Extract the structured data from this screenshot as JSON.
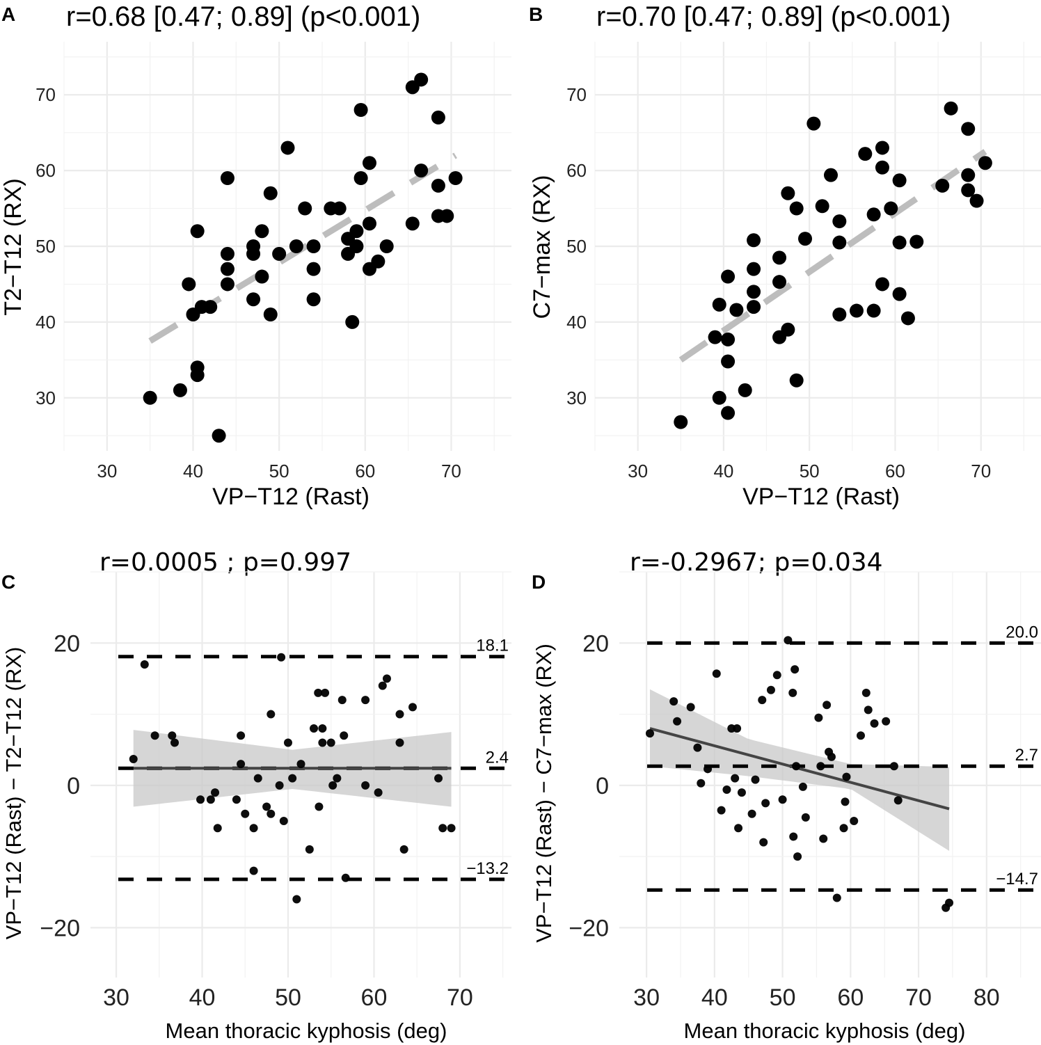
{
  "figure": {
    "panels": [
      "A",
      "B",
      "C",
      "D"
    ]
  },
  "chart_data": [
    {
      "panel": "A",
      "type": "scatter",
      "title": "r=0.68 [0.47; 0.89] (p<0.001)",
      "xlabel": "VP−T12 (Rast)",
      "ylabel": "T2−T12 (RX)",
      "xlim": [
        25,
        77
      ],
      "ylim": [
        23,
        77
      ],
      "xticks": [
        30,
        40,
        50,
        60,
        70
      ],
      "yticks": [
        30,
        40,
        50,
        60,
        70
      ],
      "grid": true,
      "fit_line": {
        "style": "dashed",
        "color": "#bdbdbd",
        "x": [
          35,
          70.5
        ],
        "y": [
          37.5,
          62
        ]
      },
      "points": [
        [
          35,
          30
        ],
        [
          38.5,
          31
        ],
        [
          40.5,
          34
        ],
        [
          40.5,
          33
        ],
        [
          43,
          25
        ],
        [
          39.5,
          45
        ],
        [
          40,
          41
        ],
        [
          41,
          42
        ],
        [
          40.5,
          52
        ],
        [
          42,
          42
        ],
        [
          44,
          59
        ],
        [
          44,
          49
        ],
        [
          44,
          47
        ],
        [
          44,
          45
        ],
        [
          47,
          50
        ],
        [
          47,
          49
        ],
        [
          47,
          43
        ],
        [
          48,
          52
        ],
        [
          48,
          46
        ],
        [
          49,
          57
        ],
        [
          49,
          41
        ],
        [
          50,
          49
        ],
        [
          51,
          63
        ],
        [
          52,
          50
        ],
        [
          53,
          55
        ],
        [
          54,
          50
        ],
        [
          54,
          47
        ],
        [
          54,
          43
        ],
        [
          56,
          55
        ],
        [
          57,
          55
        ],
        [
          58,
          51
        ],
        [
          58,
          49
        ],
        [
          59,
          52
        ],
        [
          59,
          50
        ],
        [
          58.5,
          40
        ],
        [
          59.5,
          68
        ],
        [
          59.5,
          59
        ],
        [
          60.5,
          61
        ],
        [
          60.5,
          53
        ],
        [
          60.5,
          47
        ],
        [
          61.5,
          48
        ],
        [
          62.5,
          50
        ],
        [
          65.5,
          71
        ],
        [
          66.5,
          72
        ],
        [
          65.5,
          53
        ],
        [
          66.5,
          60
        ],
        [
          68.5,
          67
        ],
        [
          68.5,
          58
        ],
        [
          68.5,
          54
        ],
        [
          69.5,
          54
        ],
        [
          70.5,
          59
        ]
      ]
    },
    {
      "panel": "B",
      "type": "scatter",
      "title": "r=0.70 [0.47; 0.89] (p<0.001)",
      "xlabel": "VP−T12 (Rast)",
      "ylabel": "C7−max (RX)",
      "xlim": [
        25,
        77
      ],
      "ylim": [
        23,
        77
      ],
      "xticks": [
        30,
        40,
        50,
        60,
        70
      ],
      "yticks": [
        30,
        40,
        50,
        60,
        70
      ],
      "grid": true,
      "fit_line": {
        "style": "dashed",
        "color": "#bdbdbd",
        "x": [
          35,
          70.5
        ],
        "y": [
          35,
          62.5
        ]
      },
      "points": [
        [
          35,
          26.8
        ],
        [
          39.5,
          30
        ],
        [
          40.5,
          28
        ],
        [
          42.5,
          31
        ],
        [
          40.5,
          34.8
        ],
        [
          39,
          38
        ],
        [
          40.5,
          37.7
        ],
        [
          39.5,
          42.3
        ],
        [
          41.5,
          41.6
        ],
        [
          40.5,
          46
        ],
        [
          43.5,
          42
        ],
        [
          43.5,
          44
        ],
        [
          43.5,
          47
        ],
        [
          43.5,
          50.8
        ],
        [
          46.5,
          48.5
        ],
        [
          46.5,
          45.3
        ],
        [
          46.5,
          38
        ],
        [
          47.5,
          39
        ],
        [
          47.5,
          57
        ],
        [
          48.5,
          55
        ],
        [
          48.5,
          32.3
        ],
        [
          49.5,
          51
        ],
        [
          50.5,
          66.2
        ],
        [
          51.5,
          55.3
        ],
        [
          52.5,
          59.4
        ],
        [
          53.5,
          53.3
        ],
        [
          53.5,
          50.5
        ],
        [
          53.5,
          41
        ],
        [
          55.5,
          41.5
        ],
        [
          56.5,
          62.2
        ],
        [
          57.5,
          41.5
        ],
        [
          57.5,
          54.2
        ],
        [
          58.5,
          63
        ],
        [
          58.5,
          60.4
        ],
        [
          58.5,
          45
        ],
        [
          59.5,
          55
        ],
        [
          60.5,
          58.7
        ],
        [
          60.5,
          50.5
        ],
        [
          60.5,
          43.7
        ],
        [
          61.5,
          40.5
        ],
        [
          62.5,
          50.6
        ],
        [
          65.5,
          58
        ],
        [
          66.5,
          68.2
        ],
        [
          68.5,
          65.5
        ],
        [
          68.5,
          59.4
        ],
        [
          68.5,
          57.4
        ],
        [
          69.5,
          56
        ],
        [
          70.5,
          61
        ]
      ]
    },
    {
      "panel": "C",
      "type": "scatter",
      "title": "r=0.0005 ; p=0.997",
      "xlabel": "Mean thoracic kyphosis (deg)",
      "ylabel": "VP−T12 (Rast) − T2−T12 (RX)",
      "xlim": [
        27,
        76
      ],
      "ylim": [
        -27,
        30
      ],
      "xticks": [
        30,
        40,
        50,
        60,
        70
      ],
      "yticks": [
        -20,
        0,
        20
      ],
      "grid": true,
      "reference_lines": [
        {
          "value": 18.1,
          "label": "18.1"
        },
        {
          "value": 2.4,
          "label": "2.4"
        },
        {
          "value": -13.2,
          "label": "−13.2"
        }
      ],
      "fit_line": {
        "x": [
          32,
          69
        ],
        "y": [
          2.4,
          2.4
        ],
        "ci_lower": [
          -3,
          -0.5,
          -3
        ],
        "ci_upper": [
          7.8,
          5,
          7.5
        ],
        "ci_x": [
          32,
          50.5,
          69
        ]
      },
      "points": [
        [
          32,
          3.7
        ],
        [
          33.3,
          17
        ],
        [
          34.5,
          7
        ],
        [
          36.5,
          7
        ],
        [
          36.8,
          6
        ],
        [
          39.8,
          -2
        ],
        [
          41,
          -2
        ],
        [
          41.5,
          -1
        ],
        [
          41.8,
          -6
        ],
        [
          44,
          -2
        ],
        [
          44.5,
          7
        ],
        [
          44.5,
          3
        ],
        [
          45,
          -4
        ],
        [
          46,
          -6
        ],
        [
          46,
          -12
        ],
        [
          46.5,
          1
        ],
        [
          47.5,
          -3
        ],
        [
          48,
          10
        ],
        [
          48,
          -4
        ],
        [
          49.5,
          -5
        ],
        [
          49,
          0
        ],
        [
          49.2,
          18
        ],
        [
          50,
          6
        ],
        [
          50.5,
          1
        ],
        [
          51,
          -16
        ],
        [
          51.5,
          3
        ],
        [
          52.5,
          -9
        ],
        [
          53,
          8
        ],
        [
          53.5,
          13
        ],
        [
          53.6,
          -3
        ],
        [
          54,
          8
        ],
        [
          54,
          6
        ],
        [
          54.3,
          13
        ],
        [
          55,
          6
        ],
        [
          55.2,
          0
        ],
        [
          55.7,
          1
        ],
        [
          56.3,
          12
        ],
        [
          56.5,
          7
        ],
        [
          56.7,
          -13
        ],
        [
          59,
          12
        ],
        [
          59,
          0
        ],
        [
          60.5,
          -1
        ],
        [
          61,
          14
        ],
        [
          61.5,
          15
        ],
        [
          63,
          10
        ],
        [
          63,
          6
        ],
        [
          63.5,
          -9
        ],
        [
          64.5,
          11
        ],
        [
          67.5,
          1
        ],
        [
          68,
          -6
        ],
        [
          69,
          -6
        ]
      ]
    },
    {
      "panel": "D",
      "type": "scatter",
      "title": "r=-0.2967; p=0.034",
      "xlabel": "Mean thoracic kyphosis (deg)",
      "ylabel": "VP−T12 (Rast) − C7−max (RX)",
      "xlim": [
        26,
        88
      ],
      "ylim": [
        -27,
        30
      ],
      "xticks": [
        30,
        40,
        50,
        60,
        70,
        80
      ],
      "yticks": [
        -20,
        0,
        20
      ],
      "grid": true,
      "reference_lines": [
        {
          "value": 20.0,
          "label": "20.0"
        },
        {
          "value": 2.7,
          "label": "2.7"
        },
        {
          "value": -14.7,
          "label": "−14.7"
        }
      ],
      "fit_line": {
        "x": [
          30.5,
          74.5
        ],
        "y": [
          8,
          -3.3
        ],
        "ci_lower": [
          2.7,
          1.3,
          -0.5,
          -9.2
        ],
        "ci_upper": [
          13.5,
          6.5,
          3,
          2.6
        ],
        "ci_x": [
          30.5,
          45,
          60,
          74.5
        ]
      },
      "points": [
        [
          30.5,
          7.3
        ],
        [
          34,
          11.8
        ],
        [
          34.5,
          9
        ],
        [
          36.5,
          11
        ],
        [
          37.5,
          5.3
        ],
        [
          38,
          0.3
        ],
        [
          39,
          2.3
        ],
        [
          40.3,
          15.7
        ],
        [
          41,
          -3.5
        ],
        [
          41.8,
          -0.6
        ],
        [
          42.5,
          8
        ],
        [
          43,
          1
        ],
        [
          43.3,
          8
        ],
        [
          43.5,
          -6
        ],
        [
          44,
          -1
        ],
        [
          45.5,
          -4
        ],
        [
          46,
          0.8
        ],
        [
          47,
          12
        ],
        [
          47.2,
          -8
        ],
        [
          47.5,
          -2.5
        ],
        [
          48.3,
          13.4
        ],
        [
          49.2,
          15.5
        ],
        [
          50,
          -2
        ],
        [
          50.8,
          20.4
        ],
        [
          51.5,
          13
        ],
        [
          51.6,
          -7.2
        ],
        [
          51.8,
          16.3
        ],
        [
          52,
          2.7
        ],
        [
          52.2,
          -10
        ],
        [
          53,
          -0.2
        ],
        [
          53.4,
          -4.5
        ],
        [
          55.3,
          9.5
        ],
        [
          55.6,
          2.7
        ],
        [
          56,
          -7.5
        ],
        [
          56.5,
          11.3
        ],
        [
          56.8,
          4.7
        ],
        [
          57.2,
          4
        ],
        [
          58,
          -15.8
        ],
        [
          59,
          -6
        ],
        [
          59.2,
          -2.3
        ],
        [
          59.4,
          1.2
        ],
        [
          60.5,
          -5
        ],
        [
          61.5,
          7
        ],
        [
          62.3,
          13
        ],
        [
          62.6,
          10.6
        ],
        [
          63.5,
          8.7
        ],
        [
          65.2,
          9
        ],
        [
          66.4,
          2.7
        ],
        [
          67,
          -2.1
        ],
        [
          74,
          -17.2
        ],
        [
          74.5,
          -16.5
        ]
      ]
    }
  ]
}
